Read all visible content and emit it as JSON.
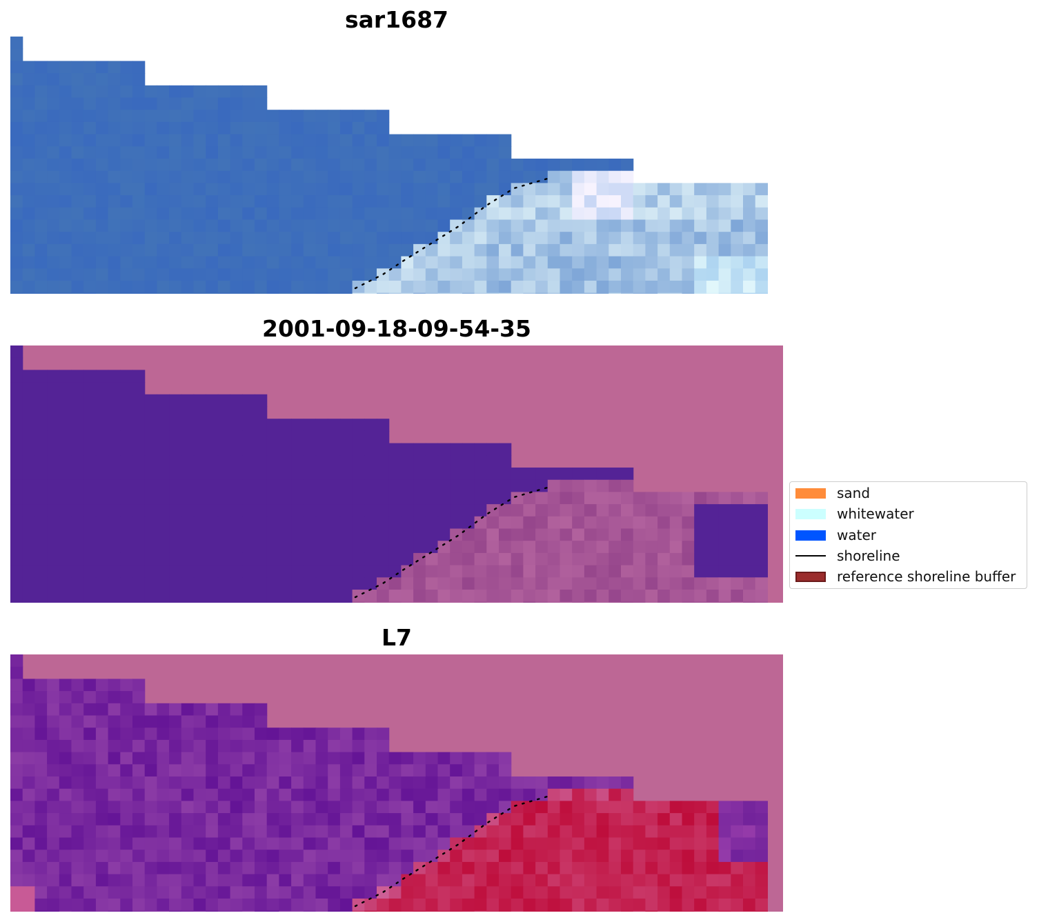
{
  "panels": [
    {
      "title": "sar1687",
      "kind": "rgb"
    },
    {
      "title": "2001-09-18-09-54-35",
      "kind": "classification"
    },
    {
      "title": "L7",
      "kind": "index"
    }
  ],
  "legend": {
    "items": [
      {
        "label": "sand",
        "color": "#ff8c3a",
        "type": "patch"
      },
      {
        "label": "whitewater",
        "color": "#ccffff",
        "type": "patch"
      },
      {
        "label": "water",
        "color": "#0055ff",
        "type": "patch"
      },
      {
        "label": "shoreline",
        "color": "#000000",
        "type": "line"
      },
      {
        "label": "reference shoreline buffer",
        "color": "#9b2c2c",
        "type": "buffer"
      }
    ]
  },
  "colors": {
    "nodata_background": "#bd6795",
    "water_blue": "#3a6cc2",
    "classified_water": "#542396",
    "index_purple": "#70219a",
    "index_red": "#be0d3b",
    "shoreline": "#000000"
  }
}
